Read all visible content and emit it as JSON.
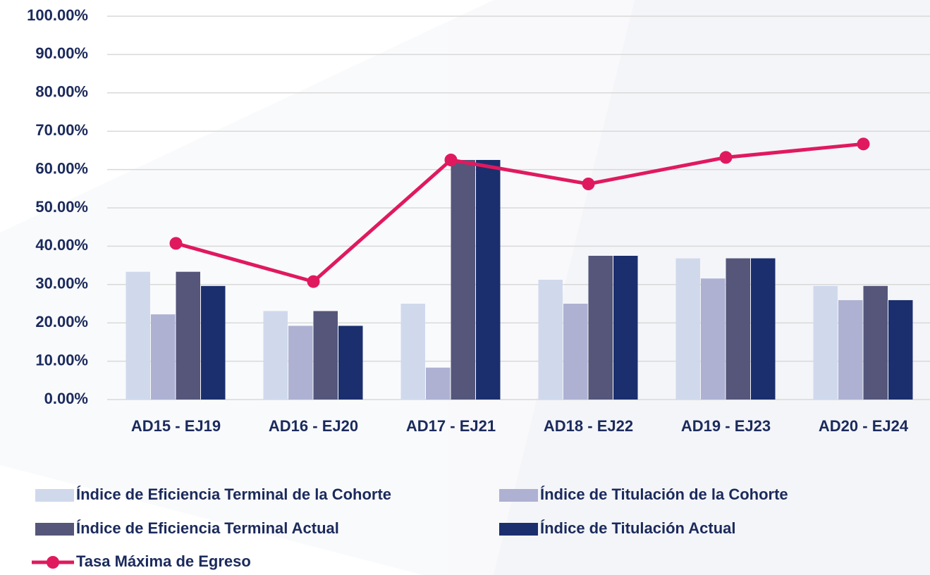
{
  "chart_data": {
    "type": "bar",
    "categories": [
      "AD15 - EJ19",
      "AD16 - EJ20",
      "AD17 - EJ21",
      "AD18 - EJ22",
      "AD19 - EJ23",
      "AD20 - EJ24"
    ],
    "series": [
      {
        "name": "Índice de Eficiencia Terminal de la Cohorte",
        "type": "bar",
        "color": "#d0d9ec",
        "values": [
          33.33,
          23.08,
          25,
          31.25,
          36.84,
          29.63
        ]
      },
      {
        "name": "Índice de Titulación de la Cohorte",
        "type": "bar",
        "color": "#aeb1d2",
        "values": [
          22.22,
          19.23,
          8.33,
          25,
          31.58,
          25.93
        ]
      },
      {
        "name": "Índice de Eficiencia Terminal Actual",
        "type": "bar",
        "color": "#55567a",
        "values": [
          33.33,
          23.08,
          62.5,
          37.5,
          36.84,
          29.63
        ]
      },
      {
        "name": "Índice de Titulación Actual",
        "type": "bar",
        "color": "#1b2f6e",
        "values": [
          29.63,
          19.23,
          62.5,
          37.5,
          36.84,
          25.93
        ]
      },
      {
        "name": "Tasa Máxima de Egreso",
        "type": "line",
        "color": "#e0195f",
        "values": [
          40.74,
          30.77,
          62.5,
          56.25,
          63.16,
          66.67
        ]
      }
    ],
    "ylim": [
      0,
      100
    ],
    "yticks": [
      {
        "value": 0,
        "label": "0.00%"
      },
      {
        "value": 10,
        "label": "10.00%"
      },
      {
        "value": 20,
        "label": "20.00%"
      },
      {
        "value": 30,
        "label": "30.00%"
      },
      {
        "value": 40,
        "label": "40.00%"
      },
      {
        "value": 50,
        "label": "50.00%"
      },
      {
        "value": 60,
        "label": "60.00%"
      },
      {
        "value": 70,
        "label": "70.00%"
      },
      {
        "value": 80,
        "label": "80.00%"
      },
      {
        "value": 90,
        "label": "90.00%"
      },
      {
        "value": 100,
        "label": "100.00%"
      }
    ],
    "grid": true
  }
}
